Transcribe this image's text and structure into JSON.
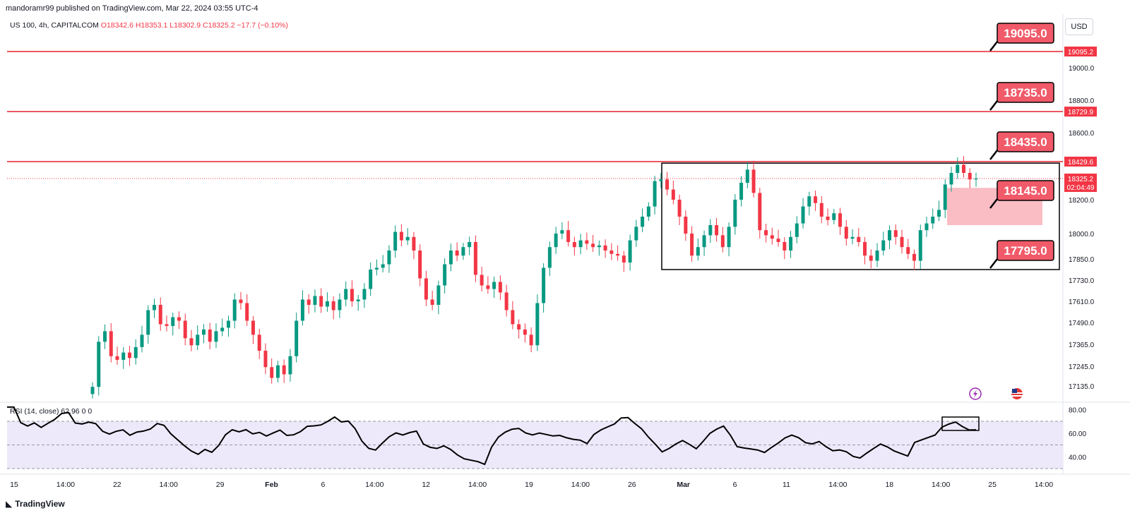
{
  "header": {
    "published": "mandoramr99 published on TradingView.com, Mar 22, 2024 03:55 UTC-4",
    "symbol": "US 100, 4h, CAPITALCOM",
    "ohlc_o": "O18342.6",
    "ohlc_h": "H18353.1",
    "ohlc_l": "L18302.9",
    "ohlc_c": "C18325.2",
    "change": "−17.7 (−0.10%)"
  },
  "currency": "USD",
  "rsi_legend": {
    "label": "RSI (14, close)",
    "value": "62.96",
    "extra": "0 0"
  },
  "brand": "TradingView",
  "colors": {
    "up": "#089981",
    "down": "#f23645",
    "level": "#e8202f",
    "rsi": "#000000",
    "rsi_band": "#ede9fb",
    "zone": "#f9b6bc"
  },
  "chart_data": {
    "type": "candlestick",
    "price_axis": {
      "ticks": [
        19000.0,
        18800.0,
        18600.0,
        18200.0,
        18000.0,
        17850.0,
        17730.0,
        17610.0,
        17490.0,
        17365.0,
        17245.0,
        17135.0
      ],
      "tick_labels": [
        "19000.0",
        "18800.0",
        "18600.0",
        "18200.0",
        "18000.0",
        "17850.0",
        "17730.0",
        "17610.0",
        "17490.0",
        "17365.0",
        "17245.0",
        "17135.0"
      ]
    },
    "time_axis": {
      "labels": [
        "15",
        "14:00",
        "22",
        "14:00",
        "29",
        "Feb",
        "6",
        "14:00",
        "12",
        "14:00",
        "19",
        "14:00",
        "26",
        "Mar",
        "6",
        "11",
        "14:00",
        "18",
        "14:00",
        "25",
        "14:00"
      ],
      "bold": [
        "Feb",
        "Mar"
      ]
    },
    "price_badges": [
      {
        "label": "19095.2",
        "price": 19095.2,
        "style": "red"
      },
      {
        "label": "18729.9",
        "price": 18729.9,
        "style": "red"
      },
      {
        "label": "18429.6",
        "price": 18429.6,
        "style": "red"
      }
    ],
    "current_price": {
      "label": "18325.2",
      "countdown": "02:04:49",
      "price": 18325.2
    },
    "levels": [
      {
        "label": "19095.0",
        "price": 19095.0
      },
      {
        "label": "18735.0",
        "price": 18735.0
      },
      {
        "label": "18435.0",
        "price": 18435.0
      },
      {
        "label": "18145.0",
        "price": 18145.0
      },
      {
        "label": "17795.0",
        "price": 17795.0
      }
    ],
    "range_box": {
      "high": 18420,
      "low": 17790
    },
    "demand_zone": {
      "high": 18270,
      "low": 18050
    },
    "close_series": [
      17130,
      17380,
      17440,
      17300,
      17280,
      17320,
      17290,
      17350,
      17420,
      17560,
      17590,
      17480,
      17470,
      17520,
      17500,
      17400,
      17360,
      17420,
      17450,
      17380,
      17440,
      17460,
      17500,
      17620,
      17600,
      17500,
      17420,
      17330,
      17240,
      17180,
      17250,
      17200,
      17300,
      17500,
      17620,
      17590,
      17640,
      17580,
      17610,
      17560,
      17620,
      17680,
      17610,
      17620,
      17680,
      17790,
      17800,
      17820,
      17900,
      18010,
      17960,
      17980,
      17900,
      17740,
      17620,
      17590,
      17700,
      17820,
      17900,
      17870,
      17920,
      17950,
      17760,
      17700,
      17680,
      17720,
      17660,
      17560,
      17480,
      17450,
      17420,
      17360,
      17600,
      17800,
      17920,
      18000,
      18020,
      17950,
      17920,
      17960,
      17940,
      17920,
      17930,
      17900,
      17880,
      17870,
      17830,
      17960,
      18040,
      18100,
      18160,
      18310,
      18320,
      18260,
      18200,
      18100,
      18000,
      17870,
      17920,
      17990,
      18050,
      17990,
      17920,
      18040,
      18200,
      18300,
      18380,
      18240,
      18020,
      17990,
      17970,
      17950,
      17900,
      17980,
      18060,
      18160,
      18220,
      18180,
      18100,
      18080,
      18120,
      18040,
      17970,
      17980,
      17950,
      17870,
      17840,
      17900,
      17960,
      18020,
      17980,
      17920,
      17880,
      17840,
      18020,
      18060,
      18100,
      18140,
      18290,
      18360,
      18410,
      18360,
      18320,
      18325
    ]
  }
}
